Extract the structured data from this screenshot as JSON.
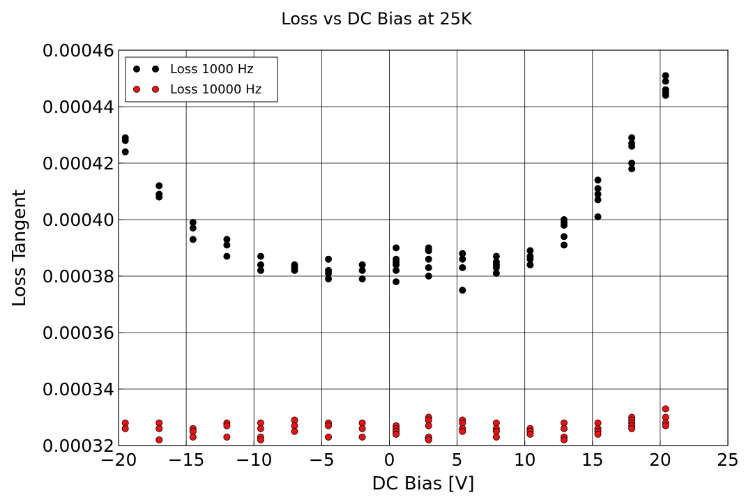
{
  "chart_data": {
    "type": "scatter",
    "title": "Loss vs DC Bias at 25K",
    "xlabel": "DC Bias [V]",
    "ylabel": "Loss Tangent",
    "xlim": [
      -20,
      25
    ],
    "ylim": [
      0.00032,
      0.00046
    ],
    "x_ticks": [
      "−20",
      "−15",
      "−10",
      "−5",
      "0",
      "5",
      "10",
      "15",
      "20",
      "25"
    ],
    "x_tick_values": [
      -20,
      -15,
      -10,
      -5,
      0,
      5,
      10,
      15,
      20,
      25
    ],
    "y_ticks": [
      "0.00032",
      "0.00034",
      "0.00036",
      "0.00038",
      "0.00040",
      "0.00042",
      "0.00044",
      "0.00046"
    ],
    "y_tick_values": [
      0.00032,
      0.00034,
      0.00036,
      0.00038,
      0.0004,
      0.00042,
      0.00044,
      0.00046
    ],
    "grid": true,
    "legend_position": "top-left",
    "series": [
      {
        "name": "Loss 1000 Hz",
        "color": "#000000",
        "points": [
          [
            -19.5,
            0.000429
          ],
          [
            -19.5,
            0.000428
          ],
          [
            -19.5,
            0.000424
          ],
          [
            -17.0,
            0.000412
          ],
          [
            -17.0,
            0.000409
          ],
          [
            -17.0,
            0.000408
          ],
          [
            -14.5,
            0.000399
          ],
          [
            -14.5,
            0.000397
          ],
          [
            -14.5,
            0.000393
          ],
          [
            -12.0,
            0.000393
          ],
          [
            -12.0,
            0.000391
          ],
          [
            -12.0,
            0.000387
          ],
          [
            -9.5,
            0.000387
          ],
          [
            -9.5,
            0.000384
          ],
          [
            -9.5,
            0.000382
          ],
          [
            -7.0,
            0.000384
          ],
          [
            -7.0,
            0.000383
          ],
          [
            -7.0,
            0.000382
          ],
          [
            -4.5,
            0.000386
          ],
          [
            -4.5,
            0.000382
          ],
          [
            -4.5,
            0.000381
          ],
          [
            -4.5,
            0.000379
          ],
          [
            -2.0,
            0.000384
          ],
          [
            -2.0,
            0.000382
          ],
          [
            -2.0,
            0.000379
          ],
          [
            0.5,
            0.00039
          ],
          [
            0.5,
            0.000386
          ],
          [
            0.5,
            0.000385
          ],
          [
            0.5,
            0.000384
          ],
          [
            0.5,
            0.000382
          ],
          [
            0.5,
            0.000378
          ],
          [
            2.9,
            0.00039
          ],
          [
            2.9,
            0.000389
          ],
          [
            2.9,
            0.000386
          ],
          [
            2.9,
            0.000383
          ],
          [
            2.9,
            0.00038
          ],
          [
            5.4,
            0.000388
          ],
          [
            5.4,
            0.000386
          ],
          [
            5.4,
            0.000383
          ],
          [
            5.4,
            0.000375
          ],
          [
            7.9,
            0.000387
          ],
          [
            7.9,
            0.000385
          ],
          [
            7.9,
            0.000384
          ],
          [
            7.9,
            0.000383
          ],
          [
            7.9,
            0.000381
          ],
          [
            10.4,
            0.000389
          ],
          [
            10.4,
            0.000387
          ],
          [
            10.4,
            0.000386
          ],
          [
            10.4,
            0.000384
          ],
          [
            12.9,
            0.0004
          ],
          [
            12.9,
            0.000399
          ],
          [
            12.9,
            0.000398
          ],
          [
            12.9,
            0.000394
          ],
          [
            12.9,
            0.000391
          ],
          [
            15.4,
            0.000414
          ],
          [
            15.4,
            0.000411
          ],
          [
            15.4,
            0.000409
          ],
          [
            15.4,
            0.000407
          ],
          [
            15.4,
            0.000401
          ],
          [
            17.9,
            0.000429
          ],
          [
            17.9,
            0.000427
          ],
          [
            17.9,
            0.000426
          ],
          [
            17.9,
            0.00042
          ],
          [
            17.9,
            0.000418
          ],
          [
            20.4,
            0.000451
          ],
          [
            20.4,
            0.000449
          ],
          [
            20.4,
            0.000446
          ],
          [
            20.4,
            0.000445
          ],
          [
            20.4,
            0.000444
          ]
        ]
      },
      {
        "name": "Loss 10000 Hz",
        "color": "#ee1111",
        "points": [
          [
            -19.5,
            0.000328
          ],
          [
            -19.5,
            0.000326
          ],
          [
            -17.0,
            0.000328
          ],
          [
            -17.0,
            0.000326
          ],
          [
            -17.0,
            0.000322
          ],
          [
            -14.5,
            0.000326
          ],
          [
            -14.5,
            0.000325
          ],
          [
            -14.5,
            0.000323
          ],
          [
            -12.0,
            0.000328
          ],
          [
            -12.0,
            0.000327
          ],
          [
            -12.0,
            0.000323
          ],
          [
            -9.5,
            0.000328
          ],
          [
            -9.5,
            0.000326
          ],
          [
            -9.5,
            0.000323
          ],
          [
            -9.5,
            0.000322
          ],
          [
            -7.0,
            0.000329
          ],
          [
            -7.0,
            0.000327
          ],
          [
            -7.0,
            0.000325
          ],
          [
            -4.5,
            0.000328
          ],
          [
            -4.5,
            0.000327
          ],
          [
            -4.5,
            0.000323
          ],
          [
            -2.0,
            0.000328
          ],
          [
            -2.0,
            0.000326
          ],
          [
            -2.0,
            0.000323
          ],
          [
            0.5,
            0.000327
          ],
          [
            0.5,
            0.000326
          ],
          [
            0.5,
            0.000325
          ],
          [
            0.5,
            0.000324
          ],
          [
            2.9,
            0.00033
          ],
          [
            2.9,
            0.000329
          ],
          [
            2.9,
            0.000327
          ],
          [
            2.9,
            0.000323
          ],
          [
            2.9,
            0.000322
          ],
          [
            5.4,
            0.000329
          ],
          [
            5.4,
            0.000328
          ],
          [
            5.4,
            0.000326
          ],
          [
            5.4,
            0.000325
          ],
          [
            7.9,
            0.000328
          ],
          [
            7.9,
            0.000326
          ],
          [
            7.9,
            0.000325
          ],
          [
            7.9,
            0.000323
          ],
          [
            10.4,
            0.000326
          ],
          [
            10.4,
            0.000325
          ],
          [
            10.4,
            0.000324
          ],
          [
            12.9,
            0.000328
          ],
          [
            12.9,
            0.000326
          ],
          [
            12.9,
            0.000323
          ],
          [
            12.9,
            0.000322
          ],
          [
            15.4,
            0.000328
          ],
          [
            15.4,
            0.000326
          ],
          [
            15.4,
            0.000325
          ],
          [
            15.4,
            0.000324
          ],
          [
            17.9,
            0.00033
          ],
          [
            17.9,
            0.000329
          ],
          [
            17.9,
            0.000328
          ],
          [
            17.9,
            0.000327
          ],
          [
            17.9,
            0.000326
          ],
          [
            20.4,
            0.000333
          ],
          [
            20.4,
            0.00033
          ],
          [
            20.4,
            0.000328
          ],
          [
            20.4,
            0.000327
          ]
        ]
      }
    ]
  }
}
